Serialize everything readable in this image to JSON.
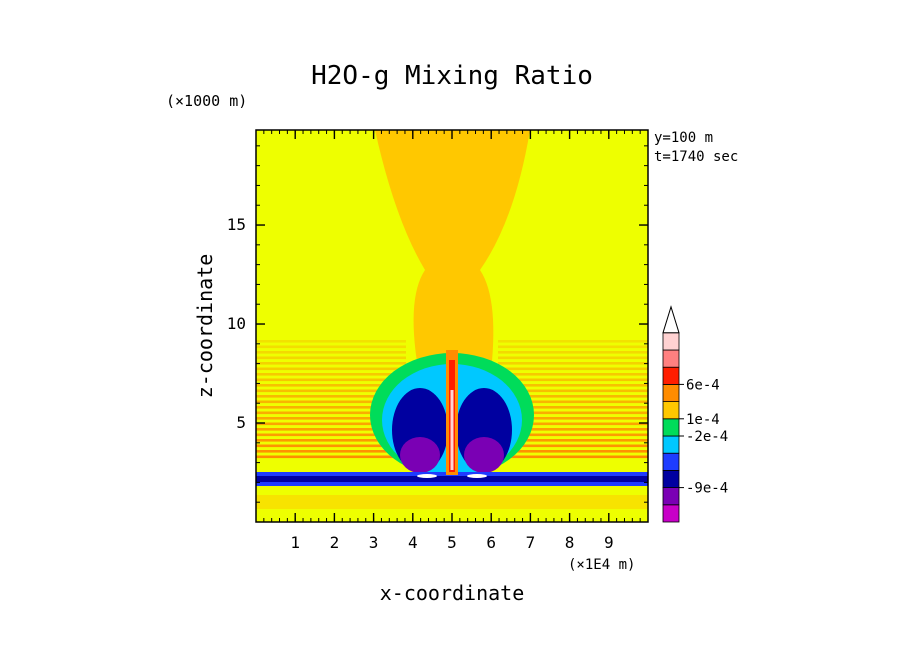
{
  "chart_data": {
    "type": "heatmap",
    "title": "H2O-g Mixing Ratio",
    "xlabel": "x-coordinate",
    "ylabel": "z-coordinate",
    "x_units": "(×1E4 m)",
    "y_units": "(×1000 m)",
    "annotations": [
      "y=100 m",
      "t=1740 sec"
    ],
    "xlim": [
      0,
      10
    ],
    "ylim": [
      0,
      19.8
    ],
    "x_ticks": [
      1,
      2,
      3,
      4,
      5,
      6,
      7,
      8,
      9
    ],
    "y_ticks": [
      5,
      10,
      15
    ],
    "colorbar": {
      "labels": [
        {
          "text": "6e-4",
          "level": 8
        },
        {
          "text": "1e-4",
          "level": 6
        },
        {
          "text": "-2e-4",
          "level": 5
        },
        {
          "text": "-9e-4",
          "level": 2
        }
      ],
      "colors": [
        "#c800c8",
        "#7a00b4",
        "#0000a0",
        "#1e3cff",
        "#00c8ff",
        "#00dc5a",
        "#ffc800",
        "#ff8c00",
        "#ff1e00",
        "#ff8080",
        "#ffd2d2"
      ],
      "extend": "max"
    },
    "field_description": "Background value ~0 (yellow). Plume of slightly positive values (orange) rising from x=5 to top, widening above z=12. Negative lobes (blue/purple) between x=3.5 and x=6.5 from z=2.5 to z=8. Strong positive narrow column at x=5 from z=2.8 to z=8.5. Negative horizontal band at z=2.3-2.6 across domain. Positive orange banding on flanks for z=3-9."
  },
  "colors": {
    "background": "#eeff00",
    "plume": "#ffc800",
    "band_orange": "#ff8c00"
  }
}
